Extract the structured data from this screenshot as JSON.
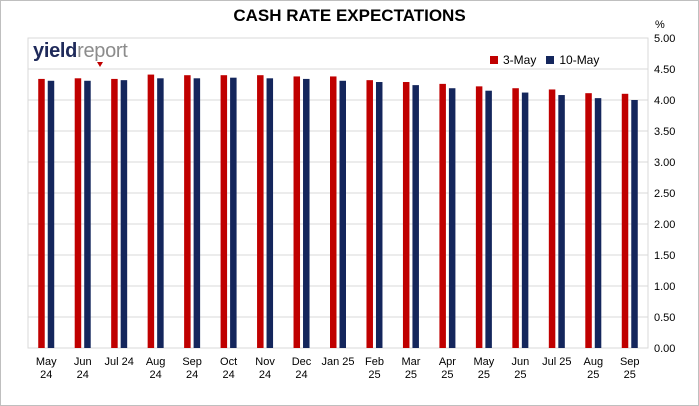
{
  "chart_data": {
    "type": "bar",
    "title": "CASH RATE EXPECTATIONS",
    "ylabel": "%",
    "ylim": [
      0,
      5
    ],
    "yticks": [
      "0.00",
      "0.50",
      "1.00",
      "1.50",
      "2.00",
      "2.50",
      "3.00",
      "3.50",
      "4.00",
      "4.50",
      "5.00"
    ],
    "grid": true,
    "legend_position": "top-right",
    "categories": [
      [
        "May",
        "24"
      ],
      [
        "Jun",
        "24"
      ],
      [
        "Jul 24"
      ],
      [
        "Aug",
        "24"
      ],
      [
        "Sep",
        "24"
      ],
      [
        "Oct",
        "24"
      ],
      [
        "Nov",
        "24"
      ],
      [
        "Dec",
        "24"
      ],
      [
        "Jan 25"
      ],
      [
        "Feb",
        "25"
      ],
      [
        "Mar",
        "25"
      ],
      [
        "Apr",
        "25"
      ],
      [
        "May",
        "25"
      ],
      [
        "Jun",
        "25"
      ],
      [
        "Jul 25"
      ],
      [
        "Aug",
        "25"
      ],
      [
        "Sep",
        "25"
      ]
    ],
    "series": [
      {
        "name": "3-May",
        "color": "#c00000",
        "values": [
          4.34,
          4.35,
          4.34,
          4.41,
          4.4,
          4.4,
          4.4,
          4.38,
          4.38,
          4.32,
          4.29,
          4.26,
          4.22,
          4.19,
          4.17,
          4.11,
          4.1
        ]
      },
      {
        "name": "10-May",
        "color": "#14265c",
        "values": [
          4.31,
          4.31,
          4.32,
          4.35,
          4.35,
          4.36,
          4.35,
          4.34,
          4.31,
          4.29,
          4.24,
          4.19,
          4.15,
          4.12,
          4.08,
          4.03,
          4.0
        ]
      }
    ]
  },
  "logo": {
    "part1": "yield",
    "part2": "report"
  }
}
